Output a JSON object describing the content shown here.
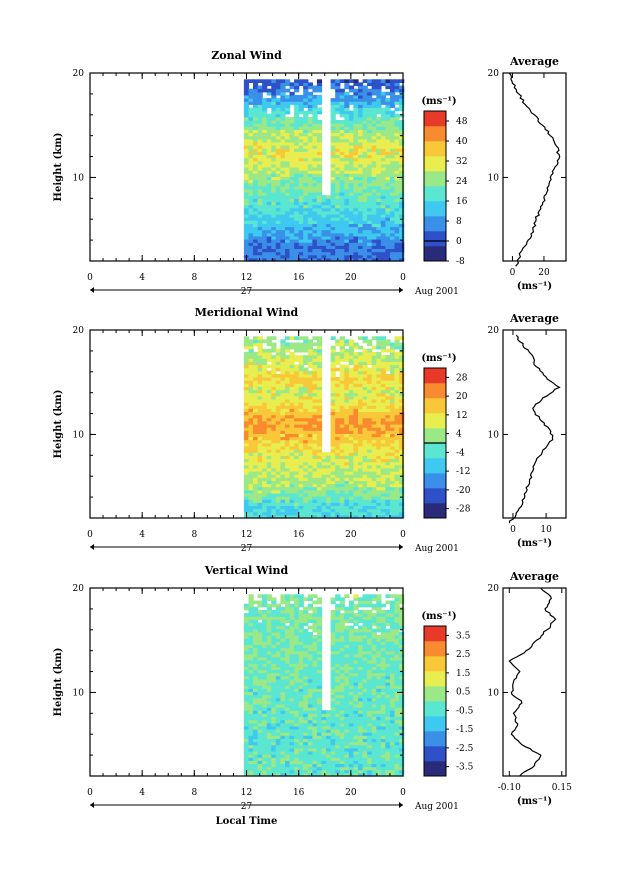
{
  "chart_data": [
    {
      "type": "heatmap",
      "title": "Zonal Wind",
      "ylabel": "Height (km)",
      "x_ticks": [
        "0",
        "4",
        "8",
        "12",
        "16",
        "20",
        "0"
      ],
      "y_ticks": [
        "10",
        "20"
      ],
      "date_label": "27",
      "month_label": "Aug 2001",
      "xlim": [
        0,
        24
      ],
      "ylim": [
        2,
        20
      ],
      "data_start_hour": 11.8,
      "colorbar": {
        "unit": "(ms⁻¹)",
        "ticks": [
          "48",
          "40",
          "32",
          "24",
          "16",
          "8",
          "0",
          "-8"
        ],
        "min": -8,
        "max": 52,
        "zero_line": 0
      },
      "profile_by_height": [
        {
          "height": 3,
          "value": 4
        },
        {
          "height": 4,
          "value": 8
        },
        {
          "height": 5,
          "value": 12
        },
        {
          "height": 6,
          "value": 15
        },
        {
          "height": 7,
          "value": 18
        },
        {
          "height": 8,
          "value": 20
        },
        {
          "height": 9,
          "value": 22
        },
        {
          "height": 10,
          "value": 25
        },
        {
          "height": 11,
          "value": 28
        },
        {
          "height": 12,
          "value": 32
        },
        {
          "height": 13,
          "value": 30
        },
        {
          "height": 14,
          "value": 26
        },
        {
          "height": 15,
          "value": 22
        },
        {
          "height": 16,
          "value": 18
        },
        {
          "height": 17,
          "value": 12
        },
        {
          "height": 18,
          "value": 6
        },
        {
          "height": 19,
          "value": 2
        }
      ],
      "average": {
        "title": "Average",
        "x_ticks": [
          "0",
          "20"
        ],
        "xlim": [
          -6,
          34
        ],
        "unit": "(ms⁻¹)",
        "y_ticks": [
          "10",
          "20"
        ],
        "points": [
          {
            "height": 1.5,
            "value": 2
          },
          {
            "height": 3,
            "value": 6
          },
          {
            "height": 4,
            "value": 10
          },
          {
            "height": 5,
            "value": 13
          },
          {
            "height": 6,
            "value": 15
          },
          {
            "height": 7,
            "value": 18
          },
          {
            "height": 8,
            "value": 20
          },
          {
            "height": 9,
            "value": 22
          },
          {
            "height": 10,
            "value": 24
          },
          {
            "height": 11,
            "value": 27
          },
          {
            "height": 12,
            "value": 30
          },
          {
            "height": 13,
            "value": 28
          },
          {
            "height": 14,
            "value": 24
          },
          {
            "height": 15,
            "value": 19
          },
          {
            "height": 16,
            "value": 14
          },
          {
            "height": 17,
            "value": 8
          },
          {
            "height": 18,
            "value": 4
          },
          {
            "height": 19,
            "value": 0
          },
          {
            "height": 20,
            "value": -2
          }
        ]
      }
    },
    {
      "type": "heatmap",
      "title": "Meridional Wind",
      "ylabel": "Height (km)",
      "x_ticks": [
        "0",
        "4",
        "8",
        "12",
        "16",
        "20",
        "0"
      ],
      "y_ticks": [
        "10",
        "20"
      ],
      "date_label": "27",
      "month_label": "Aug 2001",
      "xlim": [
        0,
        24
      ],
      "ylim": [
        2,
        20
      ],
      "data_start_hour": 11.8,
      "colorbar": {
        "unit": "(ms⁻¹)",
        "ticks": [
          "28",
          "20",
          "12",
          "4",
          "-4",
          "-12",
          "-20",
          "-28"
        ],
        "min": -32,
        "max": 32,
        "zero_line": 0
      },
      "profile_by_height": [
        {
          "height": 3,
          "value": -6
        },
        {
          "height": 4,
          "value": 0
        },
        {
          "height": 5,
          "value": 4
        },
        {
          "height": 6,
          "value": 6
        },
        {
          "height": 7,
          "value": 8
        },
        {
          "height": 8,
          "value": 10
        },
        {
          "height": 9,
          "value": 14
        },
        {
          "height": 10,
          "value": 18
        },
        {
          "height": 11,
          "value": 20
        },
        {
          "height": 12,
          "value": 16
        },
        {
          "height": 13,
          "value": 10
        },
        {
          "height": 14,
          "value": 8
        },
        {
          "height": 15,
          "value": 14
        },
        {
          "height": 16,
          "value": 10
        },
        {
          "height": 17,
          "value": 8
        },
        {
          "height": 18,
          "value": 4
        },
        {
          "height": 19,
          "value": 2
        }
      ],
      "average": {
        "title": "Average",
        "x_ticks": [
          "0",
          "10"
        ],
        "xlim": [
          -3,
          16
        ],
        "unit": "(ms⁻¹)",
        "y_ticks": [
          "10",
          "20"
        ],
        "points": [
          {
            "height": 1.5,
            "value": -1
          },
          {
            "height": 2.5,
            "value": 1
          },
          {
            "height": 3.5,
            "value": 3
          },
          {
            "height": 4.5,
            "value": 4
          },
          {
            "height": 5.5,
            "value": 5
          },
          {
            "height": 6.5,
            "value": 6
          },
          {
            "height": 7.5,
            "value": 7
          },
          {
            "height": 8.5,
            "value": 9
          },
          {
            "height": 9.5,
            "value": 12
          },
          {
            "height": 10.5,
            "value": 11
          },
          {
            "height": 11.5,
            "value": 8
          },
          {
            "height": 12.5,
            "value": 6
          },
          {
            "height": 13.5,
            "value": 9
          },
          {
            "height": 14.5,
            "value": 14
          },
          {
            "height": 15.5,
            "value": 10
          },
          {
            "height": 16.5,
            "value": 7
          },
          {
            "height": 17.5,
            "value": 6
          },
          {
            "height": 18.5,
            "value": 3
          },
          {
            "height": 19.5,
            "value": 1
          }
        ]
      }
    },
    {
      "type": "heatmap",
      "title": "Vertical Wind",
      "ylabel": "Height (km)",
      "xlabel": "Local Time",
      "x_ticks": [
        "0",
        "4",
        "8",
        "12",
        "16",
        "20",
        "0"
      ],
      "y_ticks": [
        "10",
        "20"
      ],
      "date_label": "27",
      "month_label": "Aug 2001",
      "xlim": [
        0,
        24
      ],
      "ylim": [
        2,
        20
      ],
      "data_start_hour": 11.8,
      "colorbar": {
        "unit": "(ms⁻¹)",
        "ticks": [
          "3.5",
          "2.5",
          "1.5",
          "0.5",
          "-0.5",
          "-1.5",
          "-2.5",
          "-3.5"
        ],
        "min": -4,
        "max": 4
      },
      "profile_by_height": [
        {
          "height": 3,
          "value": -0.3
        },
        {
          "height": 5,
          "value": -0.4
        },
        {
          "height": 7,
          "value": -0.3
        },
        {
          "height": 9,
          "value": -0.2
        },
        {
          "height": 11,
          "value": -0.2
        },
        {
          "height": 13,
          "value": -0.1
        },
        {
          "height": 15,
          "value": 0.0
        },
        {
          "height": 17,
          "value": 0.1
        },
        {
          "height": 19,
          "value": 0.2
        }
      ],
      "average": {
        "title": "Average",
        "x_ticks": [
          "-0.10",
          "0.15"
        ],
        "xlim": [
          -0.13,
          0.17
        ],
        "unit": "(ms⁻¹)",
        "y_ticks": [
          "10",
          "20"
        ],
        "points": [
          {
            "height": 2,
            "value": -0.05
          },
          {
            "height": 3,
            "value": 0.02
          },
          {
            "height": 4,
            "value": 0.05
          },
          {
            "height": 5,
            "value": -0.04
          },
          {
            "height": 6,
            "value": -0.09
          },
          {
            "height": 7,
            "value": -0.06
          },
          {
            "height": 8,
            "value": -0.08
          },
          {
            "height": 9,
            "value": -0.04
          },
          {
            "height": 10,
            "value": -0.09
          },
          {
            "height": 11,
            "value": -0.08
          },
          {
            "height": 12,
            "value": -0.05
          },
          {
            "height": 13,
            "value": -0.1
          },
          {
            "height": 14,
            "value": -0.02
          },
          {
            "height": 15,
            "value": 0.03
          },
          {
            "height": 16,
            "value": 0.08
          },
          {
            "height": 17,
            "value": 0.12
          },
          {
            "height": 18,
            "value": 0.07
          },
          {
            "height": 19,
            "value": 0.1
          },
          {
            "height": 20,
            "value": 0.05
          }
        ]
      }
    }
  ],
  "colors": {
    "scale": [
      "#2a2a7a",
      "#2e50c8",
      "#3a90e8",
      "#3fc8f0",
      "#5ae6d0",
      "#9ae888",
      "#e8ee50",
      "#f8c838",
      "#f88a30",
      "#e83a28"
    ]
  }
}
